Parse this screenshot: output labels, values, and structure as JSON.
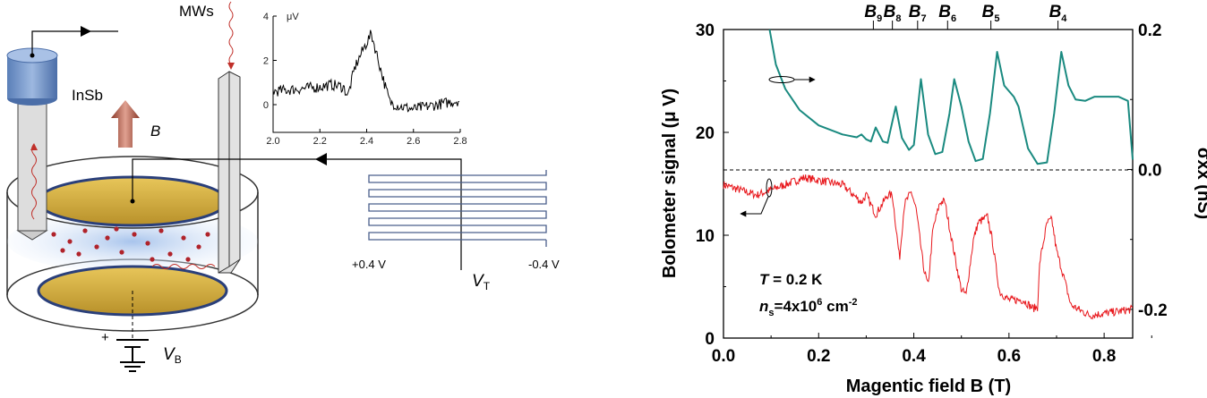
{
  "diagram": {
    "mws_label": "MWs",
    "insb_label": "InSb",
    "b_label": "B",
    "vb_label": "V",
    "vb_sub": "B",
    "vt_label": "V",
    "vt_sub": "T",
    "plus_sign": "+",
    "meander_left_label": "+0.4 V",
    "meander_right_label": "-0.4 V"
  },
  "chart_data": [
    {
      "type": "line",
      "title": "",
      "xlabel": "Magentic field B (T)",
      "ylabel": "Bolometer signal (μ V)",
      "y2label": "σxx (nS)",
      "xlim": [
        0,
        0.86
      ],
      "ylim": [
        0,
        30
      ],
      "y2lim": [
        -0.241,
        0.2
      ],
      "xticks": [
        "0.0",
        "0.2",
        "0.4",
        "0.6",
        "0.8"
      ],
      "yticks": [
        "0",
        "10",
        "20",
        "30"
      ],
      "y2ticks": [
        "-0.2",
        "0.0",
        "0.2"
      ],
      "top_markers": [
        {
          "label": "B",
          "sub": "9",
          "x": 0.315
        },
        {
          "label": "B",
          "sub": "8",
          "x": 0.355
        },
        {
          "label": "B",
          "sub": "7",
          "x": 0.408
        },
        {
          "label": "B",
          "sub": "6",
          "x": 0.471
        },
        {
          "label": "B",
          "sub": "5",
          "x": 0.562
        },
        {
          "label": "B",
          "sub": "4",
          "x": 0.703
        }
      ],
      "annotations": {
        "temp": "T = 0.2 K",
        "density_prefix": "n",
        "density_sub": "s",
        "density_rest": "=4x10",
        "density_exp": "6",
        "density_unit": " cm",
        "density_unit_exp": "-2"
      },
      "colors": {
        "sigma": "#1a8a80",
        "bolometer": "#e8161b"
      },
      "series": [
        {
          "name": "sigma_xx (nS, right axis)",
          "axis": "right",
          "points": [
            [
              0.097,
              0.2
            ],
            [
              0.11,
              0.15
            ],
            [
              0.13,
              0.115
            ],
            [
              0.16,
              0.085
            ],
            [
              0.2,
              0.063
            ],
            [
              0.25,
              0.05
            ],
            [
              0.28,
              0.046
            ],
            [
              0.29,
              0.05
            ],
            [
              0.3,
              0.043
            ],
            [
              0.31,
              0.04
            ],
            [
              0.32,
              0.06
            ],
            [
              0.335,
              0.04
            ],
            [
              0.345,
              0.038
            ],
            [
              0.362,
              0.09
            ],
            [
              0.375,
              0.045
            ],
            [
              0.39,
              0.028
            ],
            [
              0.4,
              0.035
            ],
            [
              0.415,
              0.129
            ],
            [
              0.43,
              0.05
            ],
            [
              0.445,
              0.022
            ],
            [
              0.46,
              0.025
            ],
            [
              0.475,
              0.08
            ],
            [
              0.485,
              0.129
            ],
            [
              0.5,
              0.09
            ],
            [
              0.515,
              0.04
            ],
            [
              0.53,
              0.012
            ],
            [
              0.545,
              0.015
            ],
            [
              0.56,
              0.08
            ],
            [
              0.575,
              0.168
            ],
            [
              0.59,
              0.12
            ],
            [
              0.61,
              0.104
            ],
            [
              0.62,
              0.09
            ],
            [
              0.64,
              0.03
            ],
            [
              0.66,
              0.008
            ],
            [
              0.68,
              0.01
            ],
            [
              0.695,
              0.08
            ],
            [
              0.71,
              0.168
            ],
            [
              0.725,
              0.12
            ],
            [
              0.74,
              0.1
            ],
            [
              0.76,
              0.098
            ],
            [
              0.78,
              0.104
            ],
            [
              0.83,
              0.104
            ],
            [
              0.85,
              0.098
            ],
            [
              0.86,
              0.014
            ]
          ]
        },
        {
          "name": "Bolometer signal (μV, left axis)",
          "axis": "left",
          "points": [
            [
              0.0,
              14.9
            ],
            [
              0.07,
              13.9
            ],
            [
              0.17,
              15.6
            ],
            [
              0.25,
              14.9
            ],
            [
              0.29,
              13.2
            ],
            [
              0.3,
              13.9
            ],
            [
              0.32,
              12.0
            ],
            [
              0.345,
              13.9
            ],
            [
              0.355,
              13.9
            ],
            [
              0.37,
              7.7
            ],
            [
              0.38,
              13.0
            ],
            [
              0.395,
              14.2
            ],
            [
              0.405,
              12.5
            ],
            [
              0.42,
              7.0
            ],
            [
              0.43,
              5.0
            ],
            [
              0.44,
              10.5
            ],
            [
              0.455,
              13.2
            ],
            [
              0.465,
              13.3
            ],
            [
              0.47,
              12.0
            ],
            [
              0.49,
              7.0
            ],
            [
              0.5,
              4.7
            ],
            [
              0.51,
              4.2
            ],
            [
              0.525,
              9.5
            ],
            [
              0.535,
              11.2
            ],
            [
              0.555,
              11.8
            ],
            [
              0.565,
              9.5
            ],
            [
              0.58,
              4.5
            ],
            [
              0.6,
              3.7
            ],
            [
              0.63,
              3.7
            ],
            [
              0.65,
              2.9
            ],
            [
              0.66,
              3.0
            ],
            [
              0.665,
              7.5
            ],
            [
              0.68,
              11.2
            ],
            [
              0.69,
              11.5
            ],
            [
              0.7,
              8.5
            ],
            [
              0.715,
              6.0
            ],
            [
              0.73,
              3.2
            ],
            [
              0.77,
              2.2
            ],
            [
              0.86,
              2.8
            ]
          ]
        }
      ]
    },
    {
      "type": "line",
      "title": "",
      "ylabel": "μV",
      "xlim": [
        2.0,
        2.8
      ],
      "ylim": [
        -1.25,
        4
      ],
      "xticks": [
        "2.0",
        "2.2",
        "2.4",
        "2.6",
        "2.8"
      ],
      "yticks": [
        "0",
        "2",
        "4"
      ],
      "series": [
        {
          "name": "inset signal",
          "points": [
            [
              2.0,
              0.6
            ],
            [
              2.1,
              0.7
            ],
            [
              2.2,
              0.8
            ],
            [
              2.25,
              0.9
            ],
            [
              2.3,
              0.8
            ],
            [
              2.32,
              0.4
            ],
            [
              2.35,
              1.7
            ],
            [
              2.39,
              2.6
            ],
            [
              2.42,
              3.2
            ],
            [
              2.45,
              2.0
            ],
            [
              2.48,
              0.8
            ],
            [
              2.5,
              0.1
            ],
            [
              2.55,
              -0.1
            ],
            [
              2.6,
              -0.2
            ],
            [
              2.7,
              0.0
            ],
            [
              2.8,
              0.2
            ]
          ]
        }
      ]
    }
  ]
}
